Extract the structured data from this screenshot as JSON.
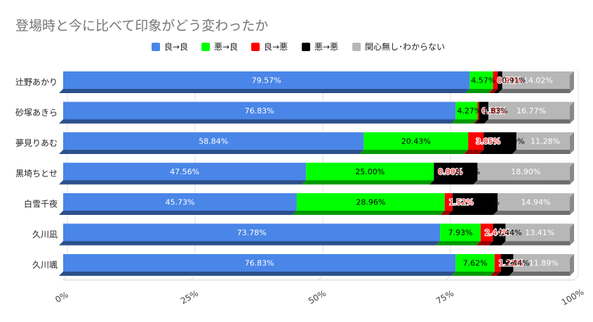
{
  "chart_data": {
    "type": "bar",
    "orientation": "horizontal",
    "stacked": "percent",
    "title": "登場時と今に比べて印象がどう変わったか",
    "categories": [
      "辻野あかり",
      "砂塚あきら",
      "夢見りあむ",
      "黒埼ちとせ",
      "白雪千夜",
      "久川凪",
      "久川颯"
    ],
    "series": [
      {
        "name": "良→良",
        "color": "#4a86e8",
        "values": [
          79.57,
          76.83,
          58.84,
          47.56,
          45.73,
          73.78,
          76.83
        ],
        "labels": [
          "79.57%",
          "76.83%",
          "58.84%",
          "47.56%",
          "45.73%",
          "73.78%",
          "76.83%"
        ]
      },
      {
        "name": "悪→良",
        "color": "#00ff00",
        "values": [
          4.57,
          4.27,
          20.43,
          25.0,
          28.96,
          7.93,
          7.62
        ],
        "labels": [
          "4.57%",
          "4.27%",
          "20.43%",
          "25.00%",
          "28.96%",
          "7.93%",
          "7.62%"
        ]
      },
      {
        "name": "良→悪",
        "color": "#ff0000",
        "values": [
          0.91,
          0.3,
          3.05,
          0.0,
          1.52,
          2.44,
          1.22
        ],
        "labels": [
          "0.91%",
          "0.30%",
          "3.05%",
          "0.00%",
          "1.52%",
          "2.44%",
          "1.22%"
        ]
      },
      {
        "name": "悪→悪",
        "color": "#000000",
        "values": [
          0.91,
          1.83,
          6.4,
          8.54,
          8.84,
          2.44,
          2.44
        ],
        "labels": [
          "0.91%",
          "1.83%",
          "6.40%",
          "8.54%",
          "8.84%",
          "2.44%",
          "2.44%"
        ]
      },
      {
        "name": "関心無し･わからない",
        "color": "#b7b7b7",
        "values": [
          14.02,
          16.77,
          11.28,
          18.9,
          14.94,
          13.41,
          11.89
        ],
        "labels": [
          "14.02%",
          "16.77%",
          "11.28%",
          "18.90%",
          "14.94%",
          "13.41%",
          "11.89%"
        ]
      }
    ],
    "x_ticks": [
      "0%",
      "25%",
      "50%",
      "75%",
      "100%"
    ],
    "xlim": [
      0,
      100
    ],
    "grid": true,
    "legend_position": "top"
  }
}
